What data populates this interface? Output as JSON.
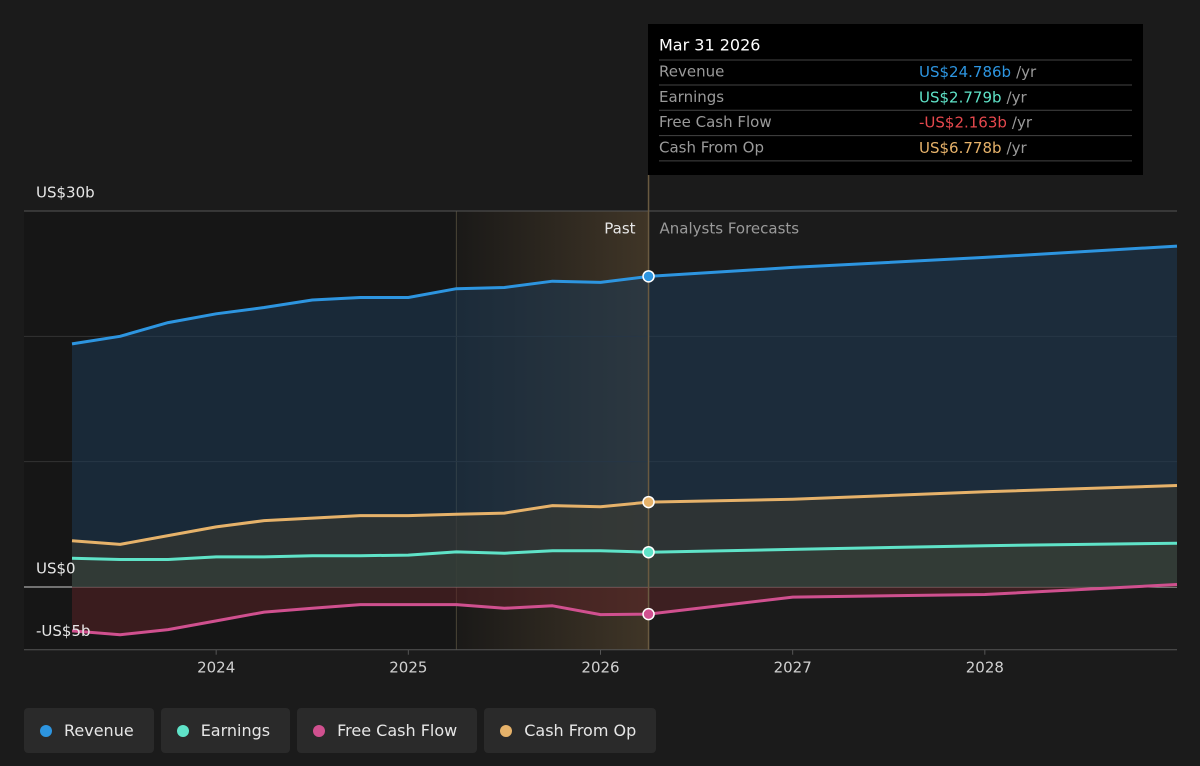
{
  "chart_data": {
    "type": "line",
    "x": [
      2023.25,
      2023.5,
      2023.75,
      2024.0,
      2024.25,
      2024.5,
      2024.75,
      2025.0,
      2025.25,
      2025.5,
      2025.75,
      2026.0,
      2026.25,
      2027.0,
      2028.0,
      2029.0
    ],
    "series": [
      {
        "name": "Revenue",
        "color": "#2d95e0",
        "fill": "#1e3a55",
        "values": [
          19.4,
          20.0,
          21.1,
          21.8,
          22.3,
          22.9,
          23.1,
          23.1,
          23.8,
          23.9,
          24.4,
          24.3,
          24.786,
          25.5,
          26.3,
          27.2
        ]
      },
      {
        "name": "Earnings",
        "color": "#5fe3c8",
        "fill": "#2f4a44",
        "values": [
          2.3,
          2.2,
          2.2,
          2.4,
          2.4,
          2.5,
          2.5,
          2.55,
          2.8,
          2.7,
          2.9,
          2.9,
          2.779,
          3.0,
          3.3,
          3.5
        ]
      },
      {
        "name": "Free Cash Flow",
        "color": "#d0508f",
        "fill": "#5a2226",
        "values": [
          -3.5,
          -3.8,
          -3.4,
          -2.7,
          -2.0,
          -1.7,
          -1.4,
          -1.4,
          -1.4,
          -1.7,
          -1.5,
          -2.2,
          -2.163,
          -0.8,
          -0.6,
          0.2
        ]
      },
      {
        "name": "Cash From Op",
        "color": "#e6b26a",
        "fill": "#3c3a30",
        "values": [
          3.7,
          3.4,
          4.1,
          4.8,
          5.3,
          5.5,
          5.7,
          5.7,
          5.8,
          5.9,
          6.5,
          6.4,
          6.778,
          7.0,
          7.6,
          8.1
        ]
      }
    ],
    "xlim": [
      2023,
      2029
    ],
    "ylim": [
      -5,
      30
    ],
    "xticks": [
      2024,
      2025,
      2026,
      2027,
      2028
    ],
    "yticks": [
      {
        "value": 30,
        "label": "US$30b"
      },
      {
        "value": 0,
        "label": "US$0"
      },
      {
        "value": -5,
        "label": "-US$5b"
      }
    ],
    "gridlines": [
      10,
      20
    ],
    "highlight_start": 2025.25,
    "forecast_start": 2026.25,
    "past_label": "Past",
    "forecast_label": "Analysts Forecasts",
    "tooltip": {
      "date": "Mar 31 2026",
      "value_labels": [
        "US$24.786b",
        "US$2.779b",
        "-US$2.163b",
        "US$6.778b"
      ],
      "value_colors": [
        "#2d95e0",
        "#5fe3c8",
        "#e5484d",
        "#e6b26a"
      ],
      "unit": "/yr"
    }
  }
}
